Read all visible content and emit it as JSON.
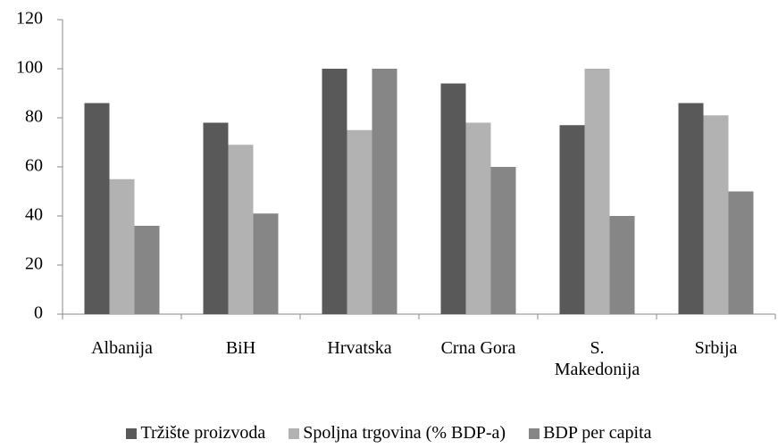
{
  "chart_data": {
    "type": "bar",
    "categories": [
      "Albanija",
      "BiH",
      "Hrvatska",
      "Crna Gora",
      "S. Makedonija",
      "Srbija"
    ],
    "series": [
      {
        "name": "Tržište proizvoda",
        "color": "#595959",
        "values": [
          86,
          78,
          100,
          94,
          77,
          86
        ]
      },
      {
        "name": "Spoljna trgovina (% BDP-a)",
        "color": "#b2b2b2",
        "values": [
          55,
          69,
          75,
          78,
          100,
          81
        ]
      },
      {
        "name": "BDP per capita",
        "color": "#868686",
        "values": [
          36,
          41,
          100,
          60,
          40,
          50
        ]
      }
    ],
    "ylim": [
      0,
      120
    ],
    "yticks": [
      0,
      20,
      40,
      60,
      80,
      100,
      120
    ],
    "grid": false
  }
}
